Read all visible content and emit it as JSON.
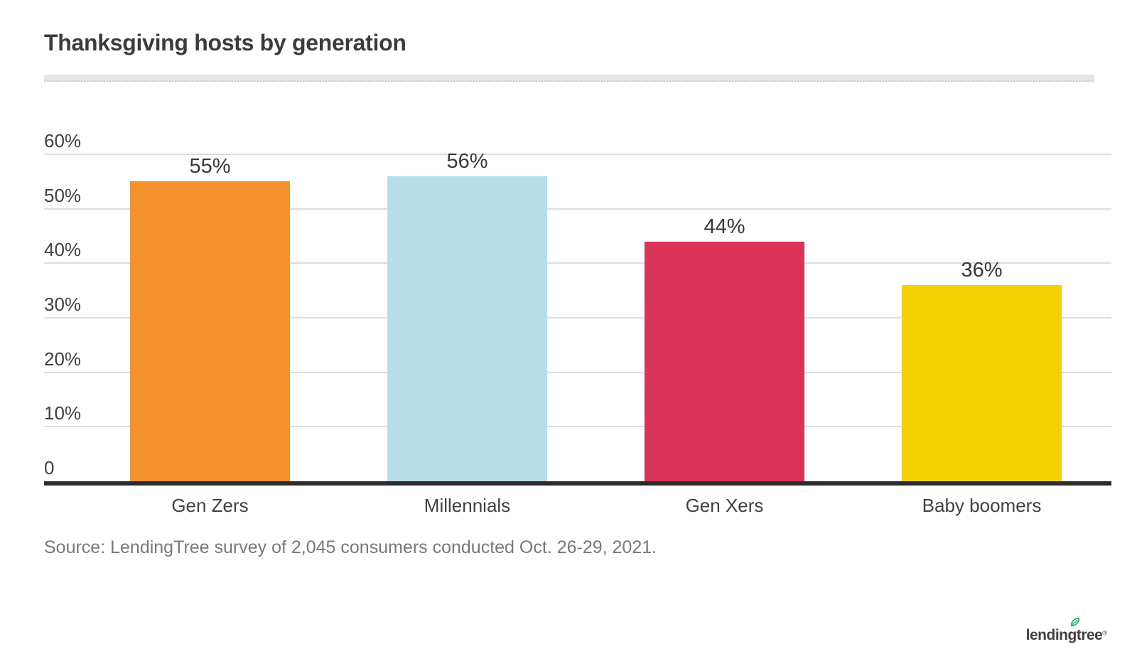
{
  "header": {
    "title": "Thanksgiving hosts by generation"
  },
  "footer": {
    "source": "Source: LendingTree survey of 2,045 consumers conducted Oct. 26-29, 2021.",
    "logo_text": "lendingtree",
    "logo_registered": "®"
  },
  "colors": {
    "logo_green": "#2bb573",
    "logo_text_color": "#414042",
    "axis_line": "#2b2b2b",
    "gridline": "#dcdcdc"
  },
  "chart_data": {
    "type": "bar",
    "title": "Thanksgiving hosts by generation",
    "categories": [
      "Gen Zers",
      "Millennials",
      "Gen Xers",
      "Baby boomers"
    ],
    "values": [
      55,
      56,
      44,
      36
    ],
    "value_labels": [
      "55%",
      "56%",
      "44%",
      "36%"
    ],
    "bar_colors": [
      "#F6922E",
      "#B5DEE8",
      "#DA3458",
      "#F2D204"
    ],
    "xlabel": "",
    "ylabel": "",
    "ylim": [
      0,
      60
    ],
    "y_ticks": [
      {
        "value": 60,
        "label": "60%"
      },
      {
        "value": 50,
        "label": "50%"
      },
      {
        "value": 40,
        "label": "40%"
      },
      {
        "value": 30,
        "label": "30%"
      },
      {
        "value": 20,
        "label": "20%"
      },
      {
        "value": 10,
        "label": "10%"
      },
      {
        "value": 0,
        "label": "0"
      }
    ],
    "grid": true,
    "legend": "none"
  }
}
